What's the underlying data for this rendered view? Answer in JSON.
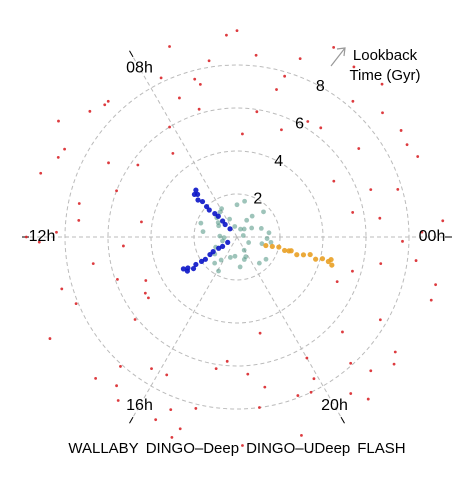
{
  "chart_data": {
    "type": "polar_scatter",
    "ylabel": "Lookback Time (Gyr)",
    "xlim": [
      0,
      24
    ],
    "ylim": [
      0,
      10
    ],
    "xticks": [
      {
        "value": 0,
        "label": "00h"
      },
      {
        "value": 8,
        "label": "08h"
      },
      {
        "value": 12,
        "label": "12h"
      },
      {
        "value": 16,
        "label": "16h"
      },
      {
        "value": 20,
        "label": "20h"
      }
    ],
    "yticks": [
      2,
      4,
      6,
      8
    ],
    "grid": true,
    "series": [
      {
        "name": "WALLABY",
        "color": "#4f9482",
        "x": [
          0.5,
          2.1,
          3.6,
          5.2,
          6.8,
          8.3,
          9.9,
          11.4,
          13.0,
          14.5,
          16.1,
          17.6,
          19.2,
          20.7,
          22.3,
          23.8,
          1.3,
          2.9,
          4.4,
          6.0,
          7.5,
          9.1,
          10.6,
          12.2,
          13.7,
          15.3,
          16.8,
          18.4,
          19.9,
          21.5,
          23.0,
          0.9,
          4.0,
          7.9,
          11.8,
          15.7,
          19.6,
          23.4,
          3.2,
          9.5
        ],
        "values": [
          1.5,
          0.8,
          1.2,
          1.7,
          0.5,
          1.4,
          1.0,
          1.6,
          0.7,
          1.3,
          1.8,
          0.9,
          1.1,
          1.6,
          0.6,
          1.4,
          1.2,
          1.7,
          0.4,
          1.5,
          0.9,
          1.3,
          1.8,
          0.6,
          1.1,
          1.6,
          1.0,
          1.4,
          0.7,
          1.7,
          1.2,
          0.3,
          0.9,
          1.5,
          0.8,
          1.3,
          1.0,
          1.6,
          0.5,
          1.1
        ]
      },
      {
        "name": "DINGO–Deep",
        "color": "#0a14c8",
        "x": [
          8.7,
          8.8,
          8.9,
          9.0,
          9.1,
          8.75,
          8.85,
          8.95,
          9.05,
          8.8,
          8.9,
          9.0,
          14.0,
          14.1,
          14.2,
          14.3,
          14.4,
          14.05,
          14.15,
          14.25,
          14.35,
          14.1,
          14.2,
          14.3
        ],
        "values": [
          0.5,
          1.0,
          1.5,
          2.0,
          2.5,
          2.9,
          2.7,
          2.3,
          1.8,
          1.3,
          0.8,
          2.8,
          0.5,
          1.0,
          1.5,
          2.0,
          2.5,
          2.9,
          2.7,
          2.3,
          1.8,
          1.3,
          0.8,
          2.8
        ]
      },
      {
        "name": "DINGO–UDeep",
        "color": "#e9a024",
        "x": [
          22.9,
          23.0,
          23.1,
          22.95,
          23.05,
          22.9,
          23.0,
          23.1,
          22.95,
          23.05,
          23.0,
          22.9,
          23.1,
          23.0
        ],
        "values": [
          1.4,
          1.7,
          2.0,
          2.3,
          2.6,
          2.9,
          3.2,
          3.5,
          3.8,
          4.1,
          4.4,
          4.6,
          4.5,
          2.5
        ]
      },
      {
        "name": "FLASH",
        "color": "#d9262a",
        "x": [
          0.3,
          1.1,
          2.0,
          2.7,
          3.5,
          4.2,
          5.0,
          5.8,
          6.6,
          7.3,
          8.1,
          8.9,
          9.6,
          10.4,
          11.2,
          12.0,
          12.7,
          13.5,
          14.3,
          15.0,
          15.8,
          16.6,
          17.4,
          18.1,
          18.9,
          19.7,
          20.4,
          21.2,
          22.0,
          22.8,
          23.5,
          0.8,
          1.6,
          2.4,
          3.1,
          3.9,
          4.7,
          5.4,
          6.2,
          7.0,
          7.7,
          8.5,
          9.3,
          10.0,
          10.8,
          11.6,
          12.3,
          13.1,
          13.9,
          14.6,
          15.4,
          16.2,
          16.9,
          17.7,
          18.5,
          19.2,
          20.0,
          20.8,
          21.6,
          22.4,
          23.1,
          23.9,
          0.5,
          1.9,
          3.3,
          4.5,
          6.0,
          7.5,
          9.0,
          10.6,
          12.1,
          13.7,
          15.2,
          16.8,
          18.3,
          19.9,
          21.4,
          22.9,
          0.1,
          2.2,
          4.9,
          7.1,
          9.8,
          11.9,
          14.1,
          16.4,
          18.7,
          21.0,
          23.3,
          3.7,
          6.9,
          10.2,
          13.3,
          17.1,
          20.6,
          1.3,
          5.6,
          11.4,
          15.6,
          19.4
        ],
        "values": [
          9.6,
          7.8,
          5.2,
          8.9,
          6.4,
          9.9,
          7.1,
          4.8,
          8.3,
          9.4,
          6.0,
          8.7,
          5.7,
          9.1,
          7.5,
          9.8,
          6.8,
          8.1,
          5.0,
          9.3,
          7.3,
          8.6,
          6.2,
          9.7,
          4.6,
          8.0,
          9.0,
          6.6,
          7.7,
          9.5,
          8.4,
          5.5,
          9.2,
          7.0,
          9.8,
          6.3,
          8.8,
          5.9,
          9.4,
          7.6,
          8.2,
          4.9,
          9.0,
          6.9,
          9.6,
          7.4,
          5.3,
          8.5,
          9.9,
          6.1,
          8.9,
          7.2,
          9.3,
          5.8,
          8.0,
          9.7,
          6.5,
          7.9,
          9.1,
          5.1,
          9.5,
          7.7,
          6.7,
          9.0,
          8.3,
          5.4,
          9.6,
          7.0,
          8.7,
          6.0,
          9.2,
          4.7,
          8.1,
          9.8,
          6.4,
          7.5,
          9.4,
          5.6,
          8.6,
          9.1,
          7.8,
          6.2,
          9.9,
          8.4,
          5.0,
          9.3,
          7.1,
          8.8,
          6.8,
          9.6,
          7.3,
          9.0,
          5.9,
          8.2,
          9.7,
          6.6,
          8.5,
          4.5,
          9.4,
          7.9
        ]
      }
    ]
  }
}
